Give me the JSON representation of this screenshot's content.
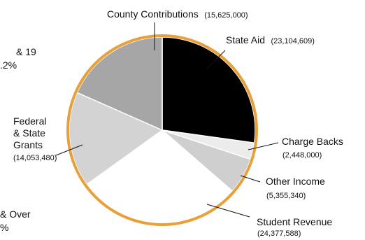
{
  "chart_data": {
    "type": "pie",
    "colors": {
      "ring": "#E8A13A",
      "slice_edge": "#ffffff"
    },
    "slices": [
      {
        "name": "State Aid",
        "value": "(23,104,609)",
        "amount": 23104609,
        "color": "#000000"
      },
      {
        "name": "Charge Backs",
        "value": "(2,448,000)",
        "amount": 2448000,
        "color": "#ececec"
      },
      {
        "name": "Other Income",
        "value": "(5,355,340)",
        "amount": 5355340,
        "color": "#cfcfcf"
      },
      {
        "name": "Student Revenue",
        "value": "(24,377,588)",
        "amount": 24377588,
        "color": "#ffffff"
      },
      {
        "name": "Federal & State Grants",
        "name_lines": [
          "Federal",
          "& State",
          "Grants"
        ],
        "value": "(14,053,480)",
        "amount": 14053480,
        "color": "#d3d3d3"
      },
      {
        "name": "County Contributions",
        "value": "(15,625,000)",
        "amount": 15625000,
        "color": "#a6a6a6"
      }
    ],
    "fragments": [
      "& 19",
      ".2%",
      "& Over",
      "%"
    ]
  }
}
